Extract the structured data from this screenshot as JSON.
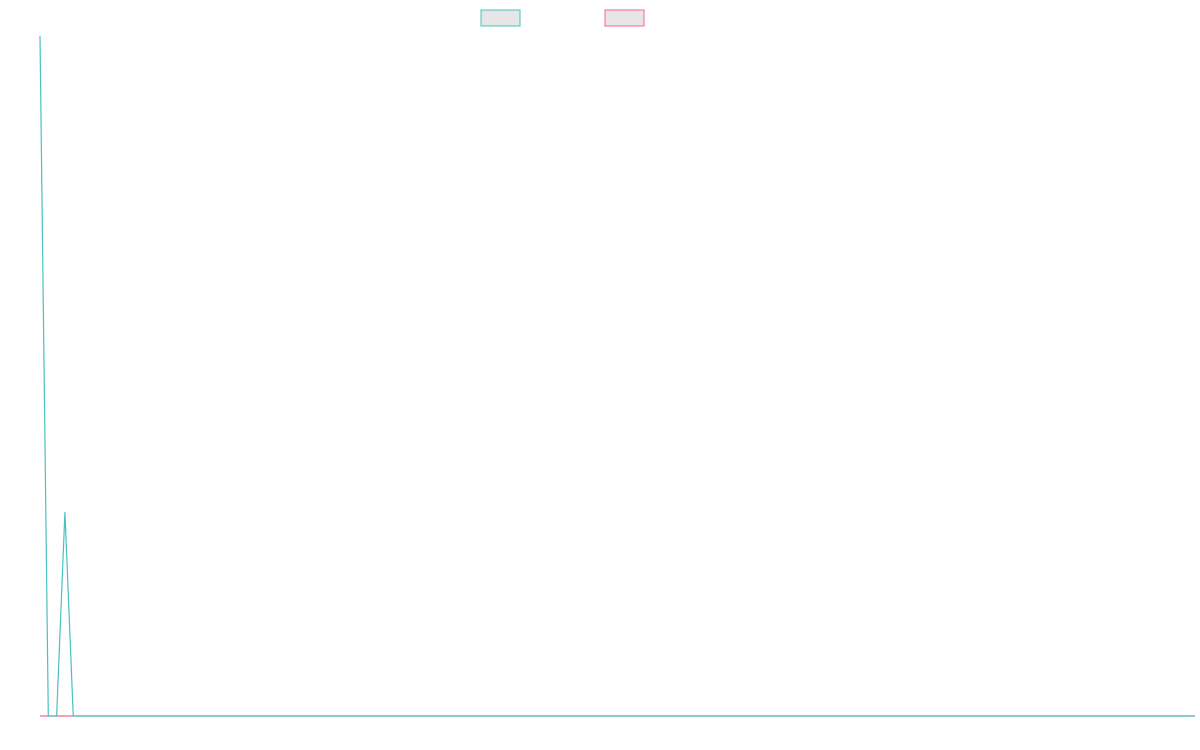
{
  "chart_data": {
    "type": "line",
    "series": [
      {
        "color": "#4bc0c0",
        "values": [
          1,
          0,
          0,
          0.3,
          0,
          0,
          0,
          0,
          0,
          0,
          0,
          0,
          0,
          0,
          0,
          0,
          0,
          0,
          0,
          0,
          0,
          0,
          0,
          0,
          0,
          0,
          0,
          0,
          0,
          0,
          0,
          0,
          0,
          0,
          0,
          0,
          0,
          0,
          0,
          0,
          0,
          0,
          0,
          0,
          0,
          0,
          0,
          0,
          0,
          0,
          0,
          0,
          0,
          0,
          0,
          0,
          0,
          0,
          0,
          0,
          0,
          0,
          0,
          0,
          0,
          0,
          0,
          0,
          0,
          0,
          0,
          0,
          0,
          0,
          0,
          0,
          0,
          0,
          0,
          0,
          0,
          0,
          0,
          0,
          0,
          0,
          0,
          0,
          0,
          0,
          0,
          0,
          0,
          0,
          0,
          0,
          0,
          0,
          0,
          0,
          0,
          0,
          0,
          0,
          0,
          0,
          0,
          0,
          0,
          0,
          0,
          0,
          0,
          0,
          0,
          0,
          0,
          0,
          0,
          0,
          0,
          0,
          0,
          0,
          0,
          0,
          0,
          0,
          0,
          0,
          0,
          0,
          0,
          0,
          0,
          0,
          0,
          0,
          0,
          0
        ]
      },
      {
        "color": "#ff6384",
        "values": [
          0,
          0,
          0,
          0,
          0,
          0,
          0,
          0,
          0,
          0,
          0,
          0,
          0,
          0,
          0,
          0,
          0,
          0,
          0,
          0,
          0,
          0,
          0,
          0,
          0,
          0,
          0,
          0,
          0,
          0,
          0,
          0,
          0,
          0,
          0,
          0,
          0,
          0,
          0,
          0,
          0,
          0,
          0,
          0,
          0,
          0,
          0,
          0,
          0,
          0,
          0,
          0,
          0,
          0,
          0,
          0,
          0,
          0,
          0,
          0,
          0,
          0,
          0,
          0,
          0,
          0,
          0,
          0,
          0,
          0,
          0,
          0,
          0,
          0,
          0,
          0,
          0,
          0,
          0,
          0,
          0,
          0,
          0,
          0,
          0,
          0,
          0,
          0,
          0,
          0,
          0,
          0,
          0,
          0,
          0,
          0,
          0,
          0,
          0,
          0,
          0,
          0,
          0,
          0,
          0,
          0,
          0,
          0,
          0,
          0,
          0,
          0,
          0,
          0,
          0,
          0,
          0,
          0,
          0,
          0,
          0,
          0,
          0,
          0,
          0,
          0,
          0,
          0,
          0,
          0,
          0,
          0,
          0,
          0,
          0,
          0,
          0,
          0,
          0,
          0
        ]
      }
    ],
    "ylim": [
      0,
      1
    ]
  }
}
